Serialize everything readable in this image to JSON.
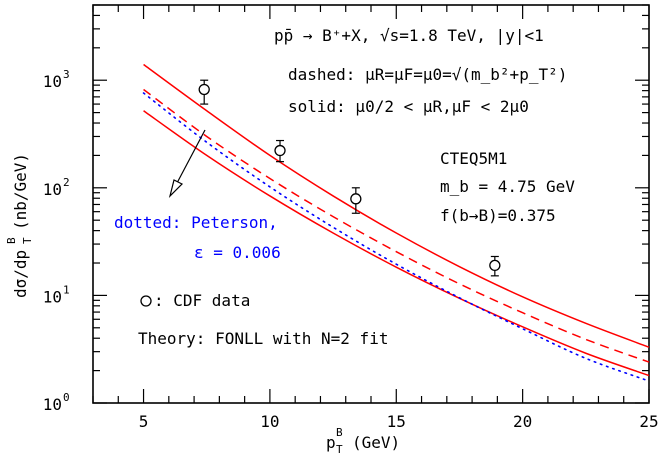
{
  "chart_data": {
    "type": "line",
    "title": "",
    "xlabel": "p_T^B (GeV)",
    "ylabel": "dσ/dp_T^B (nb/GeV)",
    "xlim": [
      3,
      25
    ],
    "ylim": [
      1,
      5000
    ],
    "y_scale": "log",
    "x_ticks": [
      5,
      10,
      15,
      20,
      25
    ],
    "y_ticks": [
      {
        "value": 1,
        "base": "10",
        "exp": "0"
      },
      {
        "value": 10,
        "base": "10",
        "exp": "1"
      },
      {
        "value": 100,
        "base": "10",
        "exp": "2"
      },
      {
        "value": 1000,
        "base": "10",
        "exp": "3"
      }
    ],
    "colors": {
      "theory": "#ff0000",
      "peterson": "#0000ff",
      "data": "#000000"
    },
    "series": [
      {
        "style": "solid-upper",
        "x": [
          5,
          7.5,
          10,
          12.5,
          15,
          17.5,
          20,
          22.5,
          25
        ],
        "y": [
          1400,
          520,
          200,
          84,
          38,
          18.5,
          9.7,
          5.5,
          3.3
        ]
      },
      {
        "style": "dashed-central",
        "x": [
          5,
          7.5,
          10,
          12.5,
          15,
          17.5,
          20,
          22.5,
          25
        ],
        "y": [
          820,
          300,
          122,
          54,
          25.5,
          12.8,
          6.9,
          3.9,
          2.4
        ]
      },
      {
        "style": "solid-lower",
        "x": [
          5,
          7.5,
          10,
          12.5,
          15,
          17.5,
          20,
          22.5,
          25
        ],
        "y": [
          520,
          200,
          84,
          38,
          18.3,
          9.4,
          5.1,
          2.9,
          1.8
        ]
      },
      {
        "style": "dotted-peterson",
        "x": [
          5,
          7.5,
          10,
          12.5,
          15,
          17.5,
          20,
          22.5,
          25
        ],
        "y": [
          760,
          265,
          102,
          43,
          19.5,
          9.5,
          4.9,
          2.6,
          1.6
        ]
      }
    ],
    "data_points": [
      {
        "x": 7.4,
        "y": 820,
        "y_low": 600,
        "y_high": 1000
      },
      {
        "x": 10.4,
        "y": 222,
        "y_low": 175,
        "y_high": 275
      },
      {
        "x": 13.4,
        "y": 79,
        "y_low": 58,
        "y_high": 100
      },
      {
        "x": 18.9,
        "y": 19,
        "y_low": 15.2,
        "y_high": 23
      }
    ],
    "annotations": {
      "process": "pp̄ → B⁺+X, √s=1.8 TeV, |y|<1",
      "dashed": "dashed: μR=μF=μ0=√(m_b²+p_T²)",
      "solid": "solid: μ0/2 < μR,μF < 2μ0",
      "pdf": "CTEQ5M1",
      "mass": "m_b = 4.75 GeV",
      "frag": "f(b→B)=0.375",
      "peterson_line1": "dotted: Peterson,",
      "peterson_line2": "ε = 0.006",
      "data_legend": ": CDF data",
      "theory_legend": "Theory: FONLL with N=2 fit"
    }
  }
}
